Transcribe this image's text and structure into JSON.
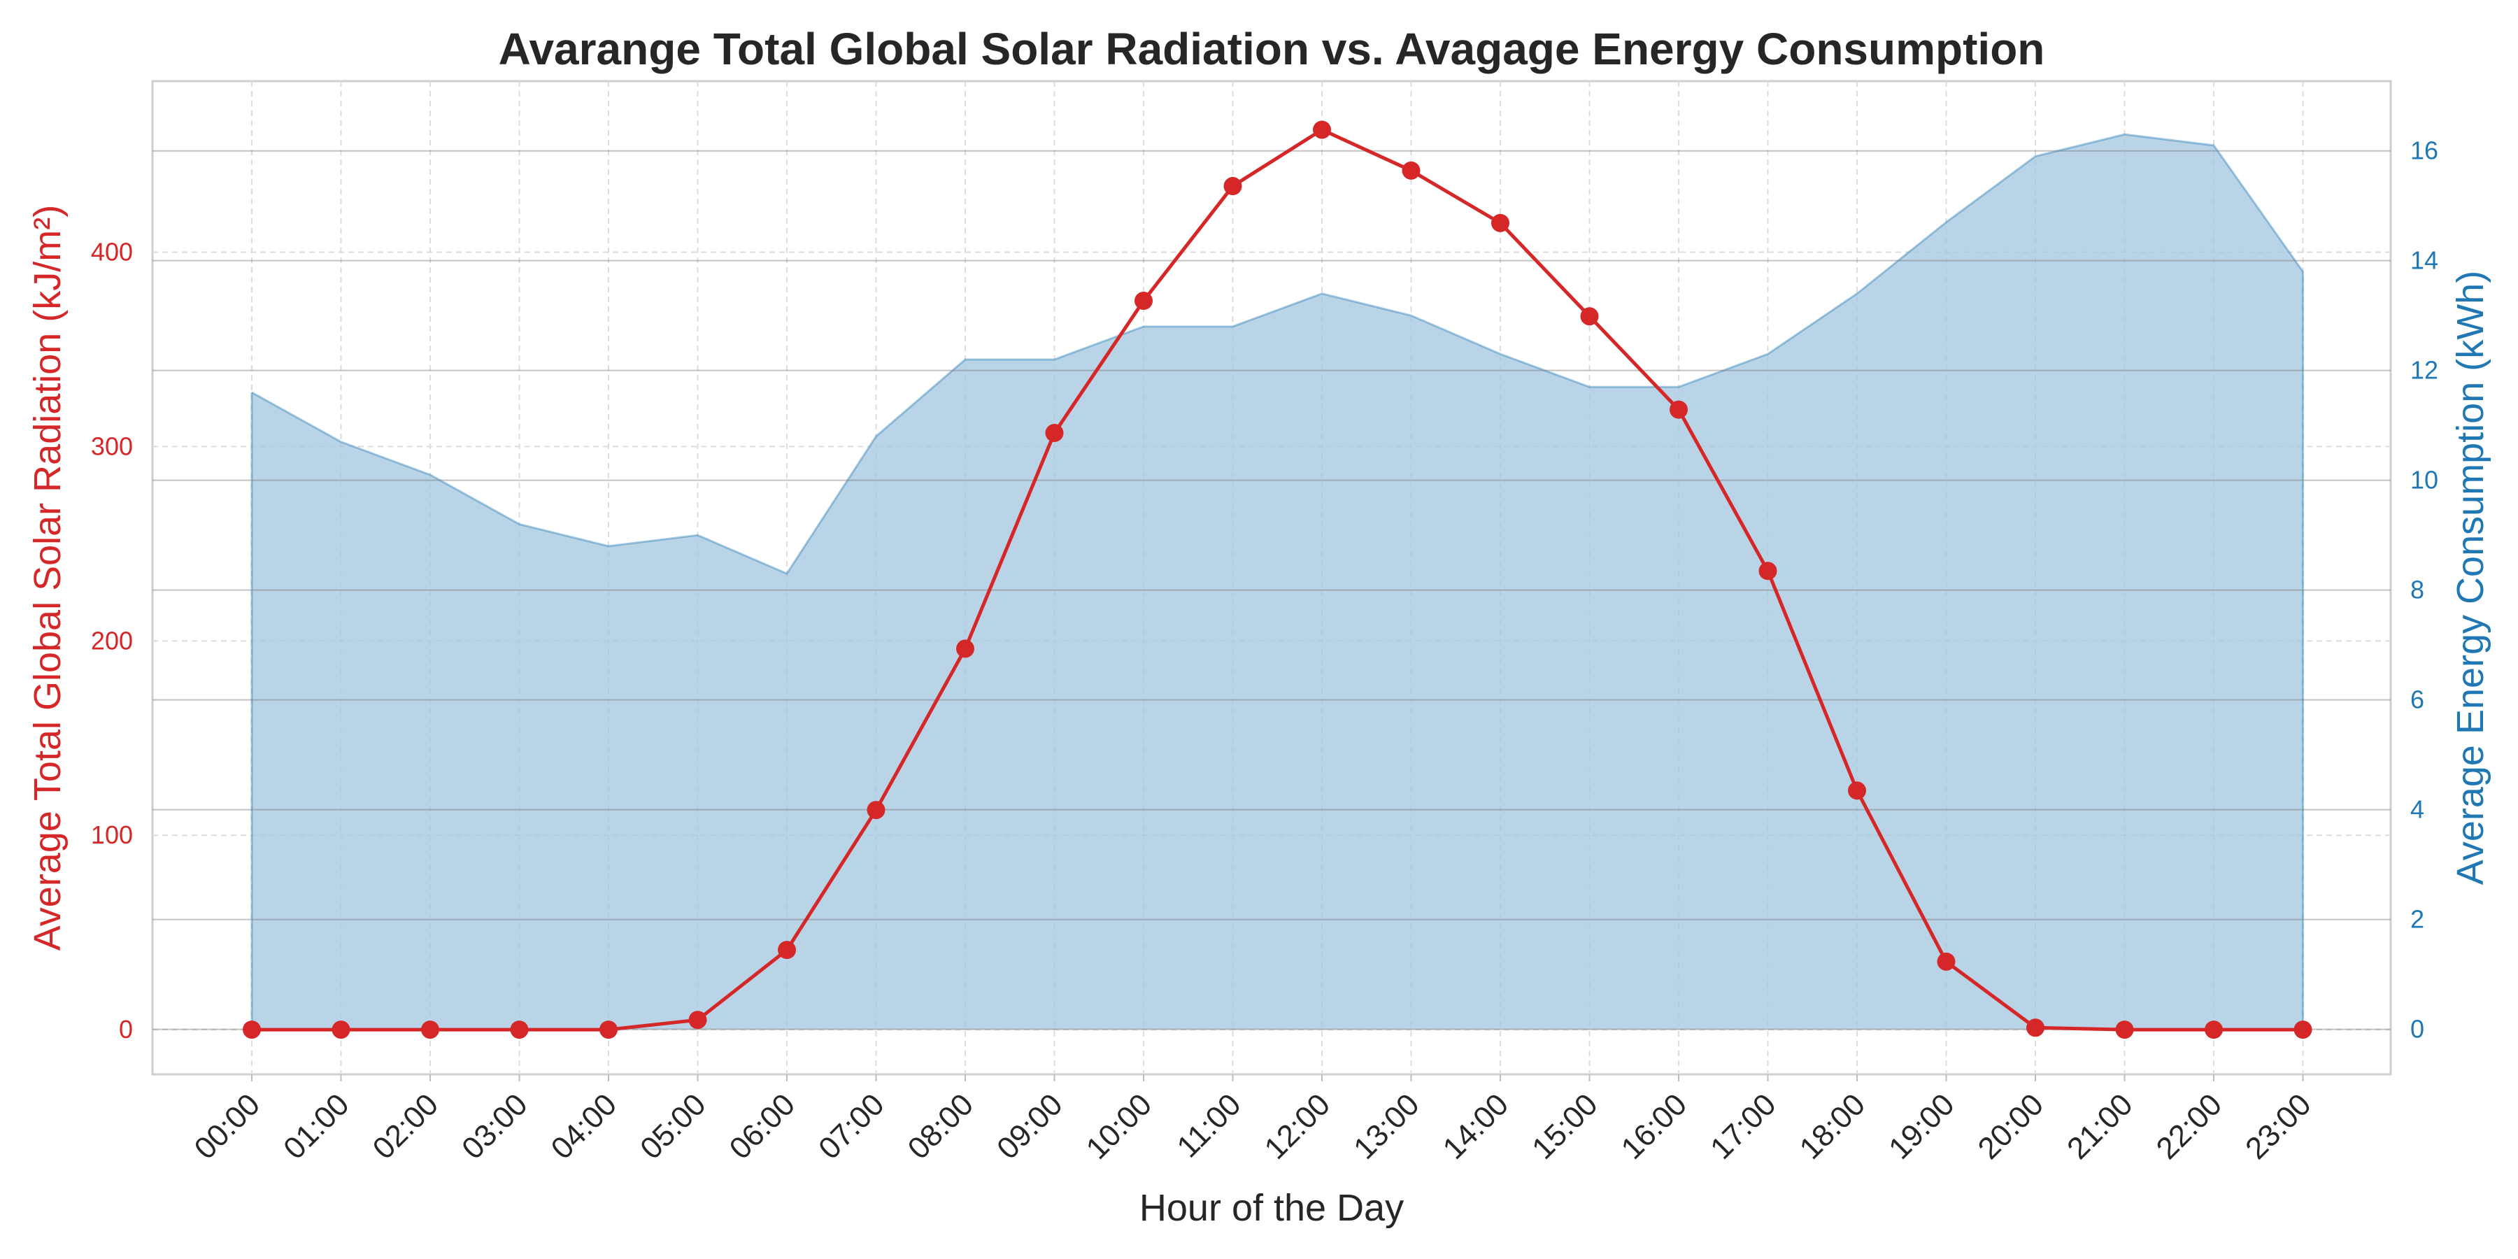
{
  "chart_data": {
    "type": "line",
    "title": "Avarange Total Global Solar Radiation vs. Avagage Energy Consumption",
    "xlabel": "Hour of the Day",
    "ylabel_left": "Average Total Global Solar Radiation (kJ/m²)",
    "ylabel_right": "Average Energy Consumption (kWh)",
    "categories": [
      "00:00",
      "01:00",
      "02:00",
      "03:00",
      "04:00",
      "05:00",
      "06:00",
      "07:00",
      "08:00",
      "09:00",
      "10:00",
      "11:00",
      "12:00",
      "13:00",
      "14:00",
      "15:00",
      "16:00",
      "17:00",
      "18:00",
      "19:00",
      "20:00",
      "21:00",
      "22:00",
      "23:00"
    ],
    "ylim_left": [
      -23,
      488
    ],
    "ylim_right": [
      -0.82,
      17.27
    ],
    "yticks_left": [
      "0",
      "100",
      "200",
      "300",
      "400"
    ],
    "yticks_right": [
      "0",
      "2",
      "4",
      "6",
      "8",
      "10",
      "12",
      "14",
      "16"
    ],
    "grid": true,
    "series": [
      {
        "axis": "left",
        "kind": "line-markers",
        "color": "#d62728",
        "values": [
          0,
          0,
          0,
          0,
          0,
          5,
          41,
          113,
          196,
          307,
          375,
          434,
          463,
          442,
          415,
          367,
          319,
          236,
          123,
          35,
          1,
          0,
          0,
          0
        ]
      },
      {
        "axis": "right",
        "kind": "area",
        "color": "#1f77b4",
        "fill": "#a6c8e0",
        "values": [
          11.6,
          10.7,
          10.1,
          9.2,
          8.8,
          9.0,
          8.3,
          10.8,
          12.2,
          12.2,
          12.8,
          12.8,
          13.4,
          13.0,
          12.3,
          11.7,
          11.7,
          12.3,
          13.4,
          14.7,
          15.9,
          16.3,
          16.1,
          13.8
        ]
      }
    ]
  },
  "colors": {
    "left_axis": "#d62728",
    "right_axis": "#1f77b4"
  }
}
